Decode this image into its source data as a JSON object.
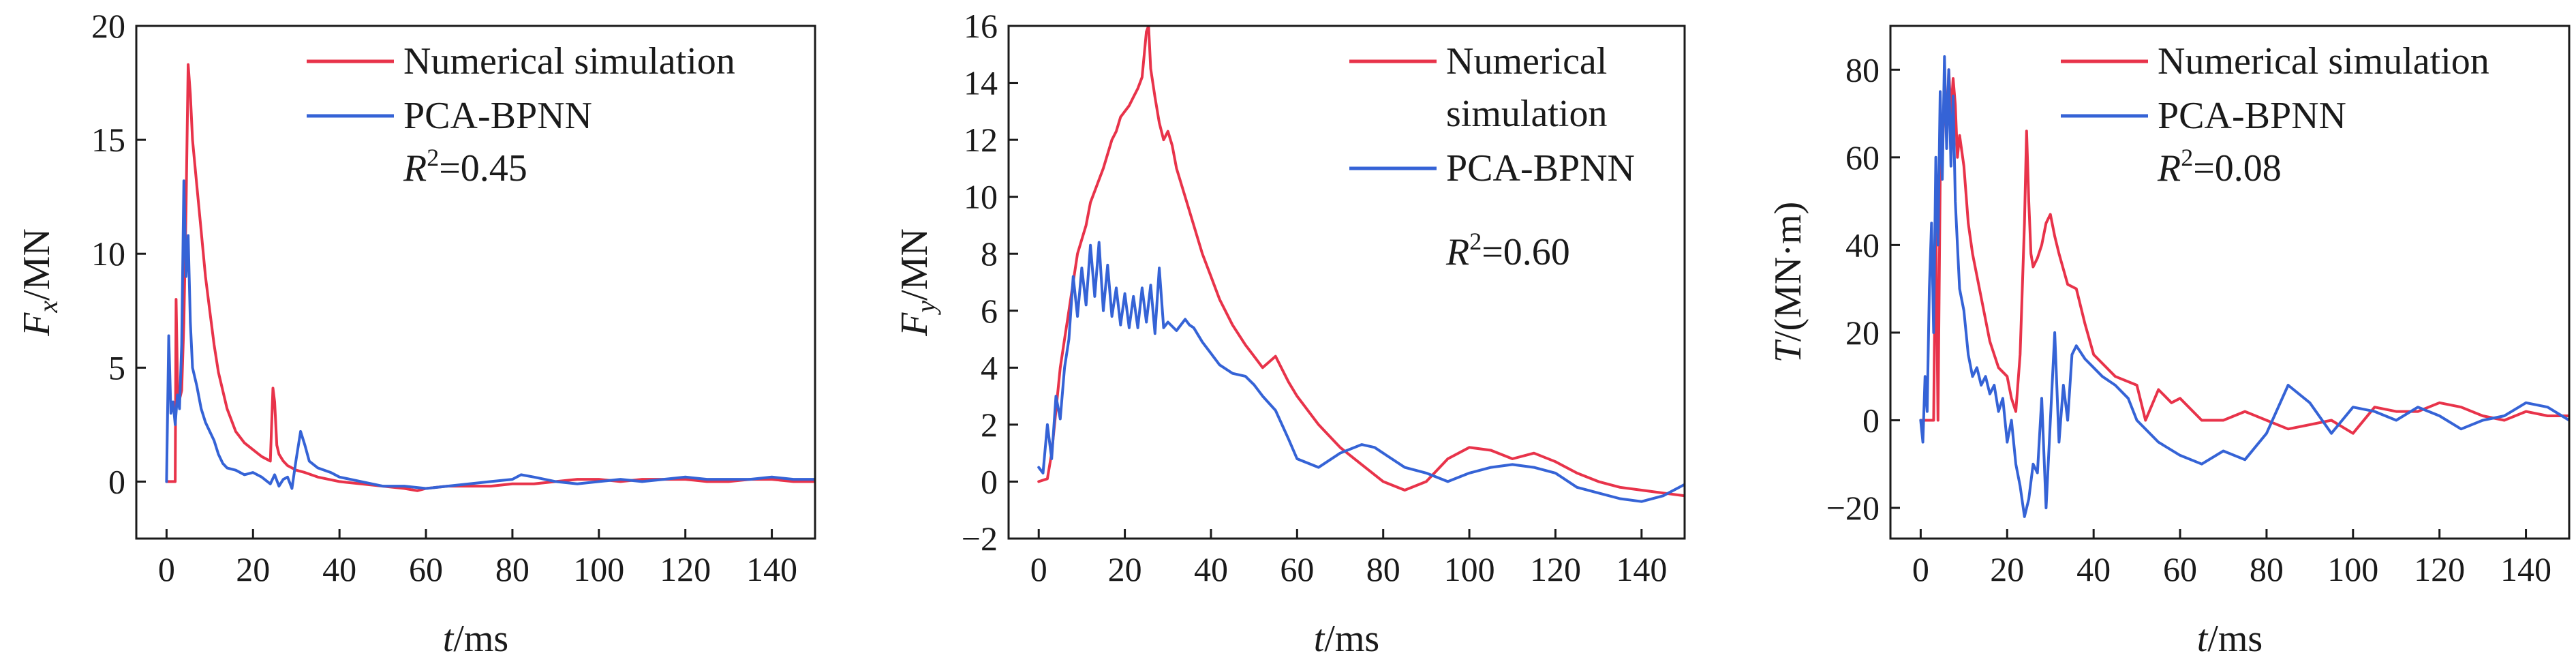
{
  "colors": {
    "numerical": "#e8334a",
    "pca": "#3563d6"
  },
  "chart_data": [
    {
      "type": "line",
      "xlim": [
        -7,
        150
      ],
      "ylim": [
        -2.5,
        20
      ],
      "xticks": [
        0,
        20,
        40,
        60,
        80,
        100,
        120,
        140
      ],
      "yticks": [
        0,
        5,
        10,
        15,
        20
      ],
      "xtick_labels": [
        "0",
        "20",
        "40",
        "60",
        "80",
        "100",
        "120",
        "140"
      ],
      "ytick_labels": [
        "0",
        "5",
        "10",
        "15",
        "20"
      ],
      "xlabel_var": "t",
      "xlabel_unit": "/ms",
      "ylabel_var": "F",
      "ylabel_sub": "x",
      "ylabel_unit": "/MN",
      "legend": [
        "Numerical simulation",
        "PCA-BPNN"
      ],
      "legend_position": "top-right",
      "r2_label": "R",
      "r2_value": "=0.45",
      "series": [
        {
          "name": "Numerical simulation",
          "color_key": "numerical",
          "x": [
            0,
            1.5,
            2,
            2.2,
            2.6,
            3,
            3.5,
            4,
            4.5,
            5,
            5.5,
            6,
            7,
            8,
            9,
            10,
            11,
            12,
            14,
            16,
            18,
            20,
            22,
            24,
            24.6,
            25,
            25.5,
            26,
            27,
            28,
            30,
            32,
            35,
            40,
            45,
            50,
            55,
            58,
            60,
            65,
            70,
            75,
            80,
            85,
            90,
            95,
            100,
            105,
            110,
            115,
            120,
            125,
            130,
            135,
            140,
            145,
            150
          ],
          "y": [
            0,
            0,
            0,
            8,
            3.5,
            3.6,
            4,
            7,
            12,
            18.3,
            17,
            15,
            13,
            11,
            9,
            7.5,
            6,
            4.8,
            3.2,
            2.2,
            1.7,
            1.4,
            1.1,
            0.9,
            4.1,
            3.5,
            1.6,
            1.2,
            0.9,
            0.7,
            0.5,
            0.4,
            0.2,
            0,
            -0.1,
            -0.2,
            -0.3,
            -0.4,
            -0.3,
            -0.2,
            -0.2,
            -0.2,
            -0.1,
            -0.1,
            0,
            0.1,
            0.1,
            0,
            0.1,
            0.1,
            0.1,
            0,
            0,
            0.1,
            0.1,
            0,
            0
          ]
        },
        {
          "name": "PCA-BPNN",
          "color_key": "pca",
          "x": [
            0,
            0.5,
            1,
            1.5,
            2,
            2.5,
            3,
            3.5,
            4,
            4.5,
            5,
            5.5,
            6,
            7,
            8,
            9,
            10,
            11,
            12,
            13,
            14,
            16,
            18,
            20,
            22,
            24,
            25,
            26,
            27,
            28,
            29,
            30,
            31,
            32,
            33,
            35,
            38,
            40,
            45,
            50,
            55,
            60,
            65,
            70,
            75,
            80,
            82,
            85,
            90,
            95,
            100,
            105,
            110,
            115,
            120,
            125,
            130,
            135,
            140,
            145,
            150
          ],
          "y": [
            0,
            6.4,
            3,
            3.5,
            2.5,
            3.8,
            3.2,
            6,
            13.2,
            9,
            10.8,
            7,
            5,
            4.2,
            3.2,
            2.6,
            2.2,
            1.8,
            1.2,
            0.8,
            0.6,
            0.5,
            0.3,
            0.4,
            0.2,
            -0.1,
            0.3,
            -0.2,
            0.1,
            0.2,
            -0.3,
            1,
            2.2,
            1.6,
            0.9,
            0.6,
            0.4,
            0.2,
            0,
            -0.2,
            -0.2,
            -0.3,
            -0.2,
            -0.1,
            0,
            0.1,
            0.3,
            0.2,
            0,
            -0.1,
            0,
            0.1,
            0,
            0.1,
            0.2,
            0.1,
            0.1,
            0.1,
            0.2,
            0.1,
            0.1
          ]
        }
      ]
    },
    {
      "type": "line",
      "xlim": [
        -7,
        150
      ],
      "ylim": [
        -2,
        16
      ],
      "xticks": [
        0,
        20,
        40,
        60,
        80,
        100,
        120,
        140
      ],
      "yticks": [
        -2,
        0,
        2,
        4,
        6,
        8,
        10,
        12,
        14,
        16
      ],
      "xtick_labels": [
        "0",
        "20",
        "40",
        "60",
        "80",
        "100",
        "120",
        "140"
      ],
      "ytick_labels": [
        "−2",
        "0",
        "2",
        "4",
        "6",
        "8",
        "10",
        "12",
        "14",
        "16"
      ],
      "xlabel_var": "t",
      "xlabel_unit": "/ms",
      "ylabel_var": "F",
      "ylabel_sub": "y",
      "ylabel_unit": "/MN",
      "legend": [
        "Numerical",
        "simulation",
        "PCA-BPNN"
      ],
      "legend_position": "top-right",
      "r2_label": "R",
      "r2_value": "=0.60",
      "series": [
        {
          "name": "Numerical simulation",
          "color_key": "numerical",
          "x": [
            0,
            2,
            3,
            4,
            5,
            6,
            7,
            8,
            9,
            10,
            11,
            12,
            13,
            14,
            15,
            16,
            17,
            18,
            19,
            20,
            21,
            22,
            23,
            24,
            25,
            25.5,
            26,
            27,
            28,
            29,
            30,
            31,
            32,
            34,
            36,
            38,
            40,
            42,
            45,
            48,
            50,
            52,
            55,
            58,
            60,
            65,
            70,
            75,
            80,
            85,
            90,
            95,
            100,
            105,
            110,
            115,
            120,
            125,
            130,
            135,
            140,
            145,
            150
          ],
          "y": [
            0,
            0.1,
            1,
            2.5,
            4,
            5,
            6,
            7,
            8,
            8.5,
            9,
            9.8,
            10.2,
            10.6,
            11,
            11.5,
            12,
            12.3,
            12.8,
            13,
            13.2,
            13.5,
            13.8,
            14.2,
            15.8,
            16,
            14.5,
            13.5,
            12.6,
            12,
            12.3,
            11.8,
            11,
            10,
            9,
            8,
            7.2,
            6.4,
            5.5,
            4.8,
            4.4,
            4,
            4.4,
            3.5,
            3,
            2,
            1.2,
            0.6,
            0,
            -0.3,
            0,
            0.8,
            1.2,
            1.1,
            0.8,
            1,
            0.7,
            0.3,
            0,
            -0.2,
            -0.3,
            -0.4,
            -0.5
          ]
        },
        {
          "name": "PCA-BPNN",
          "color_key": "pca",
          "x": [
            0,
            1,
            2,
            3,
            4,
            5,
            6,
            7,
            8,
            9,
            10,
            11,
            12,
            13,
            14,
            15,
            16,
            17,
            18,
            19,
            20,
            21,
            22,
            23,
            24,
            25,
            26,
            27,
            28,
            29,
            30,
            32,
            34,
            35,
            36,
            38,
            40,
            42,
            45,
            48,
            50,
            52,
            55,
            58,
            60,
            65,
            70,
            75,
            78,
            80,
            85,
            90,
            95,
            100,
            105,
            110,
            115,
            120,
            125,
            130,
            135,
            140,
            145,
            150
          ],
          "y": [
            0.5,
            0.3,
            2,
            0.8,
            3,
            2.2,
            4,
            5,
            7.2,
            5.8,
            7.5,
            6.2,
            8.3,
            6.5,
            8.4,
            6,
            7.6,
            5.8,
            6.8,
            5.5,
            6.6,
            5.4,
            6.5,
            5.4,
            6.8,
            5.6,
            6.9,
            5.2,
            7.5,
            5.4,
            5.6,
            5.3,
            5.7,
            5.5,
            5.4,
            4.9,
            4.5,
            4.1,
            3.8,
            3.7,
            3.4,
            3,
            2.5,
            1.5,
            0.8,
            0.5,
            1,
            1.3,
            1.2,
            1,
            0.5,
            0.3,
            0,
            0.3,
            0.5,
            0.6,
            0.5,
            0.3,
            -0.2,
            -0.4,
            -0.6,
            -0.7,
            -0.5,
            -0.1
          ]
        }
      ]
    },
    {
      "type": "line",
      "xlim": [
        -7,
        150
      ],
      "ylim": [
        -27,
        90
      ],
      "xticks": [
        0,
        20,
        40,
        60,
        80,
        100,
        120,
        140
      ],
      "yticks": [
        -20,
        0,
        20,
        40,
        60,
        80
      ],
      "xtick_labels": [
        "0",
        "20",
        "40",
        "60",
        "80",
        "100",
        "120",
        "140"
      ],
      "ytick_labels": [
        "−20",
        "0",
        "20",
        "40",
        "60",
        "80"
      ],
      "xlabel_var": "t",
      "xlabel_unit": "/ms",
      "ylabel_var": "T",
      "ylabel_sub": "",
      "ylabel_unit": "/(MN·m)",
      "legend": [
        "Numerical simulation",
        "PCA-BPNN"
      ],
      "legend_position": "top-right",
      "r2_label": "R",
      "r2_value": "=0.08",
      "series": [
        {
          "name": "Numerical simulation",
          "color_key": "numerical",
          "x": [
            0,
            2,
            3,
            3.5,
            4,
            4.5,
            5,
            5.5,
            6,
            6.5,
            7,
            7.5,
            8,
            8.5,
            9,
            10,
            11,
            12,
            14,
            16,
            18,
            20,
            21,
            22,
            23,
            24,
            24.5,
            25,
            25.5,
            26,
            27,
            28,
            29,
            30,
            31,
            32,
            34,
            36,
            38,
            40,
            45,
            50,
            52,
            55,
            58,
            60,
            65,
            70,
            75,
            80,
            85,
            90,
            95,
            100,
            105,
            110,
            115,
            120,
            125,
            130,
            135,
            140,
            145,
            150
          ],
          "y": [
            0,
            0,
            0,
            48,
            0,
            55,
            60,
            75,
            65,
            80,
            70,
            78,
            72,
            60,
            65,
            58,
            45,
            38,
            28,
            18,
            12,
            10,
            5,
            2,
            15,
            45,
            66,
            50,
            38,
            35,
            37,
            40,
            45,
            47,
            42,
            38,
            31,
            30,
            22,
            15,
            10,
            8,
            0,
            7,
            4,
            5,
            0,
            0,
            2,
            0,
            -2,
            -1,
            0,
            -3,
            3,
            2,
            2,
            4,
            3,
            1,
            0,
            2,
            1,
            1
          ]
        },
        {
          "name": "PCA-BPNN",
          "color_key": "pca",
          "x": [
            0,
            0.5,
            1,
            1.5,
            2,
            2.5,
            3,
            3.5,
            4,
            4.5,
            5,
            5.5,
            6,
            6.5,
            7,
            7.5,
            8,
            8.5,
            9,
            10,
            11,
            12,
            13,
            14,
            15,
            16,
            17,
            18,
            19,
            20,
            21,
            22,
            23,
            24,
            25,
            26,
            27,
            28,
            29,
            30,
            31,
            32,
            33,
            34,
            35,
            36,
            38,
            40,
            42,
            45,
            48,
            50,
            55,
            60,
            65,
            70,
            75,
            80,
            85,
            90,
            95,
            100,
            105,
            110,
            115,
            120,
            125,
            130,
            135,
            140,
            145,
            150
          ],
          "y": [
            0,
            -5,
            10,
            2,
            30,
            45,
            20,
            60,
            40,
            75,
            55,
            83,
            62,
            80,
            58,
            74,
            50,
            40,
            30,
            25,
            15,
            10,
            12,
            8,
            10,
            6,
            8,
            2,
            5,
            -5,
            0,
            -10,
            -15,
            -22,
            -18,
            -10,
            -12,
            5,
            -20,
            0,
            20,
            -5,
            8,
            0,
            15,
            17,
            14,
            12,
            10,
            8,
            5,
            0,
            -5,
            -8,
            -10,
            -7,
            -9,
            -3,
            8,
            4,
            -3,
            3,
            2,
            0,
            3,
            1,
            -2,
            0,
            1,
            4,
            3,
            0
          ]
        }
      ]
    }
  ]
}
